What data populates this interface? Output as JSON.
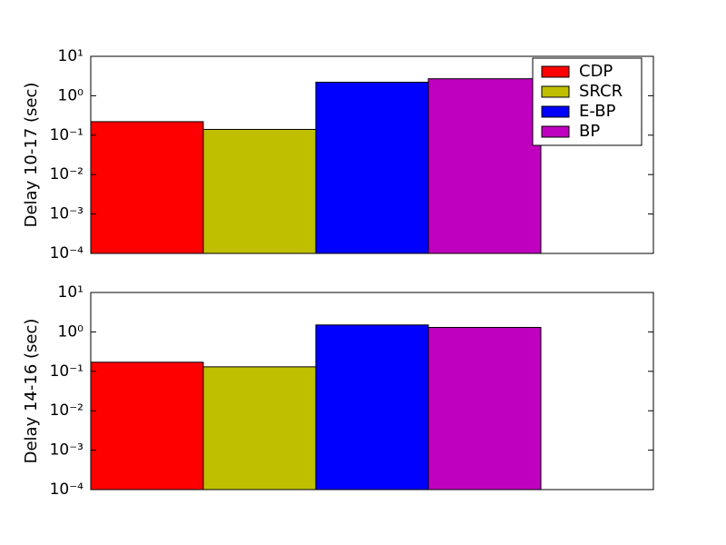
{
  "chart_data": [
    {
      "type": "bar",
      "ylabel": "Delay 10-17 (sec)",
      "log_y": true,
      "ylim": [
        0.0001,
        10
      ],
      "yticks": [
        {
          "value": 0.0001,
          "label": "10⁻⁴"
        },
        {
          "value": 0.001,
          "label": "10⁻³"
        },
        {
          "value": 0.01,
          "label": "10⁻²"
        },
        {
          "value": 0.1,
          "label": "10⁻¹"
        },
        {
          "value": 1,
          "label": "10⁰"
        },
        {
          "value": 10,
          "label": "10¹"
        }
      ],
      "legend": "upper right",
      "series": [
        {
          "name": "CDP",
          "color": "#ff0000",
          "values": [
            0.22
          ]
        },
        {
          "name": "SRCR",
          "color": "#bfbf00",
          "values": [
            0.14
          ]
        },
        {
          "name": "E-BP",
          "color": "#0000ff",
          "values": [
            2.2
          ]
        },
        {
          "name": "BP",
          "color": "#bf00bf",
          "values": [
            2.7
          ]
        }
      ]
    },
    {
      "type": "bar",
      "ylabel": "Delay 14-16 (sec)",
      "log_y": true,
      "ylim": [
        0.0001,
        10
      ],
      "yticks": [
        {
          "value": 0.0001,
          "label": "10⁻⁴"
        },
        {
          "value": 0.001,
          "label": "10⁻³"
        },
        {
          "value": 0.01,
          "label": "10⁻²"
        },
        {
          "value": 0.1,
          "label": "10⁻¹"
        },
        {
          "value": 1,
          "label": "10⁰"
        },
        {
          "value": 10,
          "label": "10¹"
        }
      ],
      "series": [
        {
          "color": "#ff0000",
          "values": [
            0.17
          ]
        },
        {
          "color": "#bfbf00",
          "values": [
            0.13
          ]
        },
        {
          "color": "#0000ff",
          "values": [
            1.5
          ]
        },
        {
          "color": "#bf00bf",
          "values": [
            1.3
          ]
        }
      ]
    }
  ]
}
